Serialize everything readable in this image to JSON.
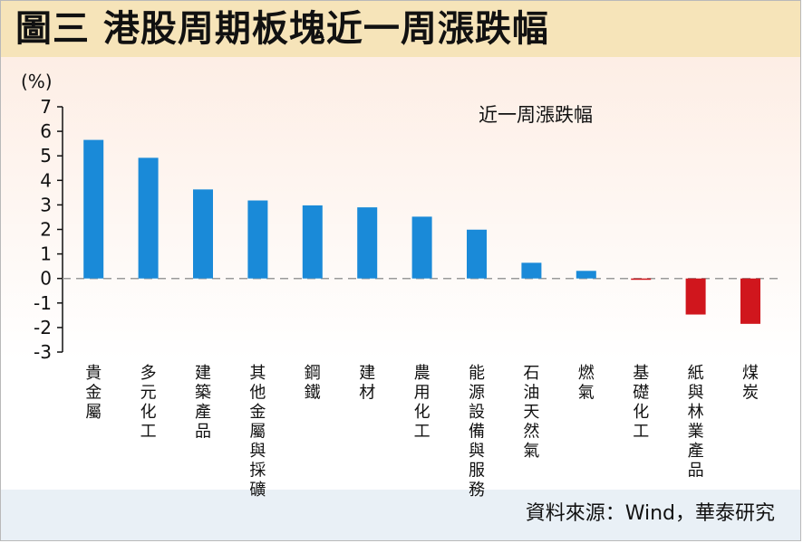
{
  "title": "圖三  港股周期板塊近一周漲跌幅",
  "source": "資料來源：Wind，華泰研究",
  "colors": {
    "positive": "#1a8ad8",
    "negative": "#d0161d",
    "title_band": "#f6e4b9",
    "source_band": "#e9f0f6"
  },
  "chart_data": {
    "type": "bar",
    "title": "",
    "ylabel": "(%)",
    "xlabel": "",
    "ylim": [
      -3,
      7
    ],
    "yticks": [
      "7",
      "6",
      "5",
      "4",
      "3",
      "2",
      "1",
      "0",
      "-1",
      "-2",
      "-3"
    ],
    "legend": "近一周漲跌幅",
    "legend_position": "top-center",
    "zero_line": "dashed",
    "categories": [
      "貴金屬",
      "多元化工",
      "建築產品",
      "其他金屬與採礦",
      "鋼鐵",
      "建材",
      "農用化工",
      "能源設備與服務",
      "石油天然氣",
      "燃氣",
      "基礎化工",
      "紙與林業產品",
      "煤炭"
    ],
    "series": [
      {
        "name": "近一周漲跌幅",
        "values": [
          5.65,
          4.92,
          3.63,
          3.18,
          2.98,
          2.9,
          2.52,
          1.99,
          0.64,
          0.31,
          -0.05,
          -1.47,
          -1.85
        ]
      }
    ]
  }
}
